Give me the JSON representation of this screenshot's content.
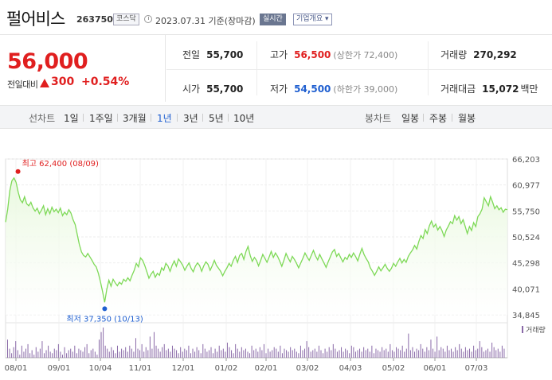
{
  "header": {
    "name": "펄어비스",
    "code": "263750",
    "market": "코스닥",
    "date": "2023.07.31 기준(장마감)",
    "live_label": "실시간",
    "info_label": "기업개요"
  },
  "price": {
    "current": "56,000",
    "change_label": "전일대비",
    "change": "300",
    "change_rate": "+0.54%"
  },
  "stats": {
    "prev_label": "전일",
    "prev": "55,700",
    "open_label": "시가",
    "open": "55,700",
    "high_label": "고가",
    "high": "56,500",
    "upper_limit": "(상한가 72,400)",
    "low_label": "저가",
    "low": "54,500",
    "lower_limit": "(하한가 39,000)",
    "volume_label": "거래량",
    "volume": "270,292",
    "amount_label": "거래대금",
    "amount": "15,072",
    "amount_unit": "백만"
  },
  "tabs": {
    "line_label": "선차트",
    "periods": [
      "1일",
      "1주일",
      "3개월",
      "1년",
      "3년",
      "5년",
      "10년"
    ],
    "candle_label": "봉차트",
    "candles": [
      "일봉",
      "주봉",
      "월봉"
    ],
    "active_period": "1년"
  },
  "colors": {
    "up": "#e01f1f",
    "down": "#1f5fd0",
    "line": "#7ed957",
    "fill": "#e8f8dd"
  },
  "chart_data": {
    "type": "area",
    "yticks": [
      "66,203",
      "60,977",
      "55,750",
      "50,524",
      "45,298",
      "40,071",
      "34,845"
    ],
    "ylim": [
      34845,
      66203
    ],
    "xticks": [
      "08/01",
      "09/01",
      "10/04",
      "11/01",
      "12/01",
      "01/02",
      "02/01",
      "03/02",
      "04/03",
      "05/02",
      "06/01",
      "07/03"
    ],
    "high_label": "최고 62,400 (08/09)",
    "low_label": "최저 37,350 (10/13)",
    "volume_legend": "거래량",
    "series": [
      {
        "values": [
          53500,
          56000,
          59800,
          61800,
          62400,
          61500,
          59500,
          58000,
          57400,
          58600,
          57200,
          56800,
          57500,
          56400,
          55700,
          56300,
          55200,
          55900,
          56800,
          55000,
          56200,
          55200,
          56500,
          55600,
          56100,
          55400,
          56300,
          54800,
          55500,
          55000,
          56000,
          55300,
          54000,
          53000,
          51000,
          49000,
          47500,
          46800,
          46500,
          47200,
          46500,
          45800,
          45000,
          44500,
          43200,
          41500,
          39500,
          37350,
          40000,
          41800,
          40600,
          42000,
          41300,
          40700,
          41400,
          41000,
          42000,
          41600,
          42300,
          41700,
          42800,
          43800,
          45200,
          44500,
          46300,
          45800,
          44800,
          43500,
          42200,
          43000,
          43600,
          42400,
          43200,
          42800,
          44300,
          43800,
          45200,
          44700,
          43600,
          44800,
          45700,
          44600,
          46100,
          45500,
          44800,
          43800,
          44600,
          45300,
          44200,
          43500,
          44600,
          45300,
          44800,
          43600,
          44700,
          45500,
          45000,
          43800,
          44700,
          45800,
          44800,
          44200,
          43600,
          42700,
          43600,
          44300,
          45200,
          44600,
          45800,
          46600,
          45400,
          46800,
          47200,
          46000,
          47600,
          48600,
          46800,
          45600,
          46400,
          45800,
          44700,
          45800,
          47000,
          46200,
          45400,
          46500,
          47600,
          46400,
          47300,
          46600,
          45700,
          44600,
          45800,
          47200,
          46300,
          45500,
          46600,
          46000,
          45200,
          44300,
          45300,
          46200,
          47300,
          46500,
          45800,
          46800,
          47800,
          46700,
          45900,
          47000,
          46100,
          45300,
          44400,
          45500,
          46500,
          47500,
          48000,
          46600,
          47200,
          46300,
          45500,
          46400,
          46000,
          47000,
          46400,
          47300,
          46600,
          45700,
          47000,
          48200,
          47000,
          46200,
          45500,
          44300,
          43600,
          42800,
          43600,
          44500,
          43700,
          44300,
          45000,
          44200,
          43600,
          44200,
          45200,
          44600,
          45500,
          46200,
          45300,
          46000,
          45400,
          46600,
          47300,
          47900,
          48800,
          48100,
          49600,
          50800,
          50200,
          52000,
          51200,
          52800,
          53700,
          52500,
          53100,
          51900,
          52600,
          51800,
          50600,
          51900,
          52700,
          53600,
          53200,
          54800,
          53900,
          54600,
          53200,
          54000,
          52600,
          51200,
          52600,
          51800,
          53400,
          52600,
          54600,
          55200,
          56100,
          58400,
          57600,
          56800,
          58600,
          57500,
          56200,
          56800,
          56000,
          56400,
          55500,
          56100,
          56000
        ]
      },
      {
        "name": "거래량",
        "values": [
          60,
          30,
          15,
          35,
          55,
          25,
          10,
          40,
          20,
          30,
          45,
          15,
          25,
          10,
          35,
          20,
          30,
          55,
          15,
          25,
          40,
          20,
          15,
          30,
          25,
          45,
          20,
          10,
          35,
          15,
          25,
          30,
          20,
          40,
          15,
          30,
          25,
          20,
          35,
          45,
          15,
          25,
          30,
          20,
          10,
          60,
          85,
          100,
          40,
          30,
          20,
          35,
          25,
          15,
          40,
          20,
          30,
          25,
          35,
          20,
          40,
          30,
          20,
          65,
          30,
          25,
          45,
          20,
          35,
          25,
          70,
          30,
          85,
          40,
          30,
          20,
          35,
          45,
          25,
          30,
          20,
          40,
          30,
          25,
          15,
          35,
          20,
          30,
          25,
          40,
          15,
          30,
          20,
          35,
          25,
          15,
          45,
          30,
          20,
          25,
          35,
          15,
          30,
          20,
          40,
          25,
          30,
          20,
          50,
          35,
          25,
          15,
          45,
          30,
          20,
          35,
          25,
          30,
          20,
          15,
          40,
          25,
          30,
          20,
          35,
          25,
          45,
          15,
          30,
          20,
          25,
          35,
          30,
          20,
          40,
          15,
          30,
          25,
          20,
          35,
          25,
          30,
          20,
          15,
          40,
          25,
          30,
          55,
          35,
          20,
          25,
          30,
          20,
          40,
          25,
          15,
          30,
          20,
          35,
          25,
          45,
          30,
          20,
          25,
          35,
          20,
          30,
          25,
          15,
          40,
          35,
          20,
          25,
          30,
          20,
          35,
          25,
          30,
          20,
          40,
          15,
          30,
          25,
          20,
          35,
          25,
          30,
          20,
          45,
          25,
          20,
          35,
          30,
          25,
          40,
          20,
          30,
          80,
          25,
          35,
          20,
          30,
          25,
          45,
          30,
          20,
          35,
          25,
          60,
          30,
          20,
          70,
          25,
          35,
          30,
          20,
          40,
          25,
          30,
          20,
          35,
          25,
          45,
          30,
          20,
          35,
          25,
          30,
          20,
          40,
          25,
          30,
          55,
          35,
          20,
          25,
          30,
          20,
          50,
          35,
          25,
          30,
          20,
          40,
          30
        ]
      }
    ]
  }
}
